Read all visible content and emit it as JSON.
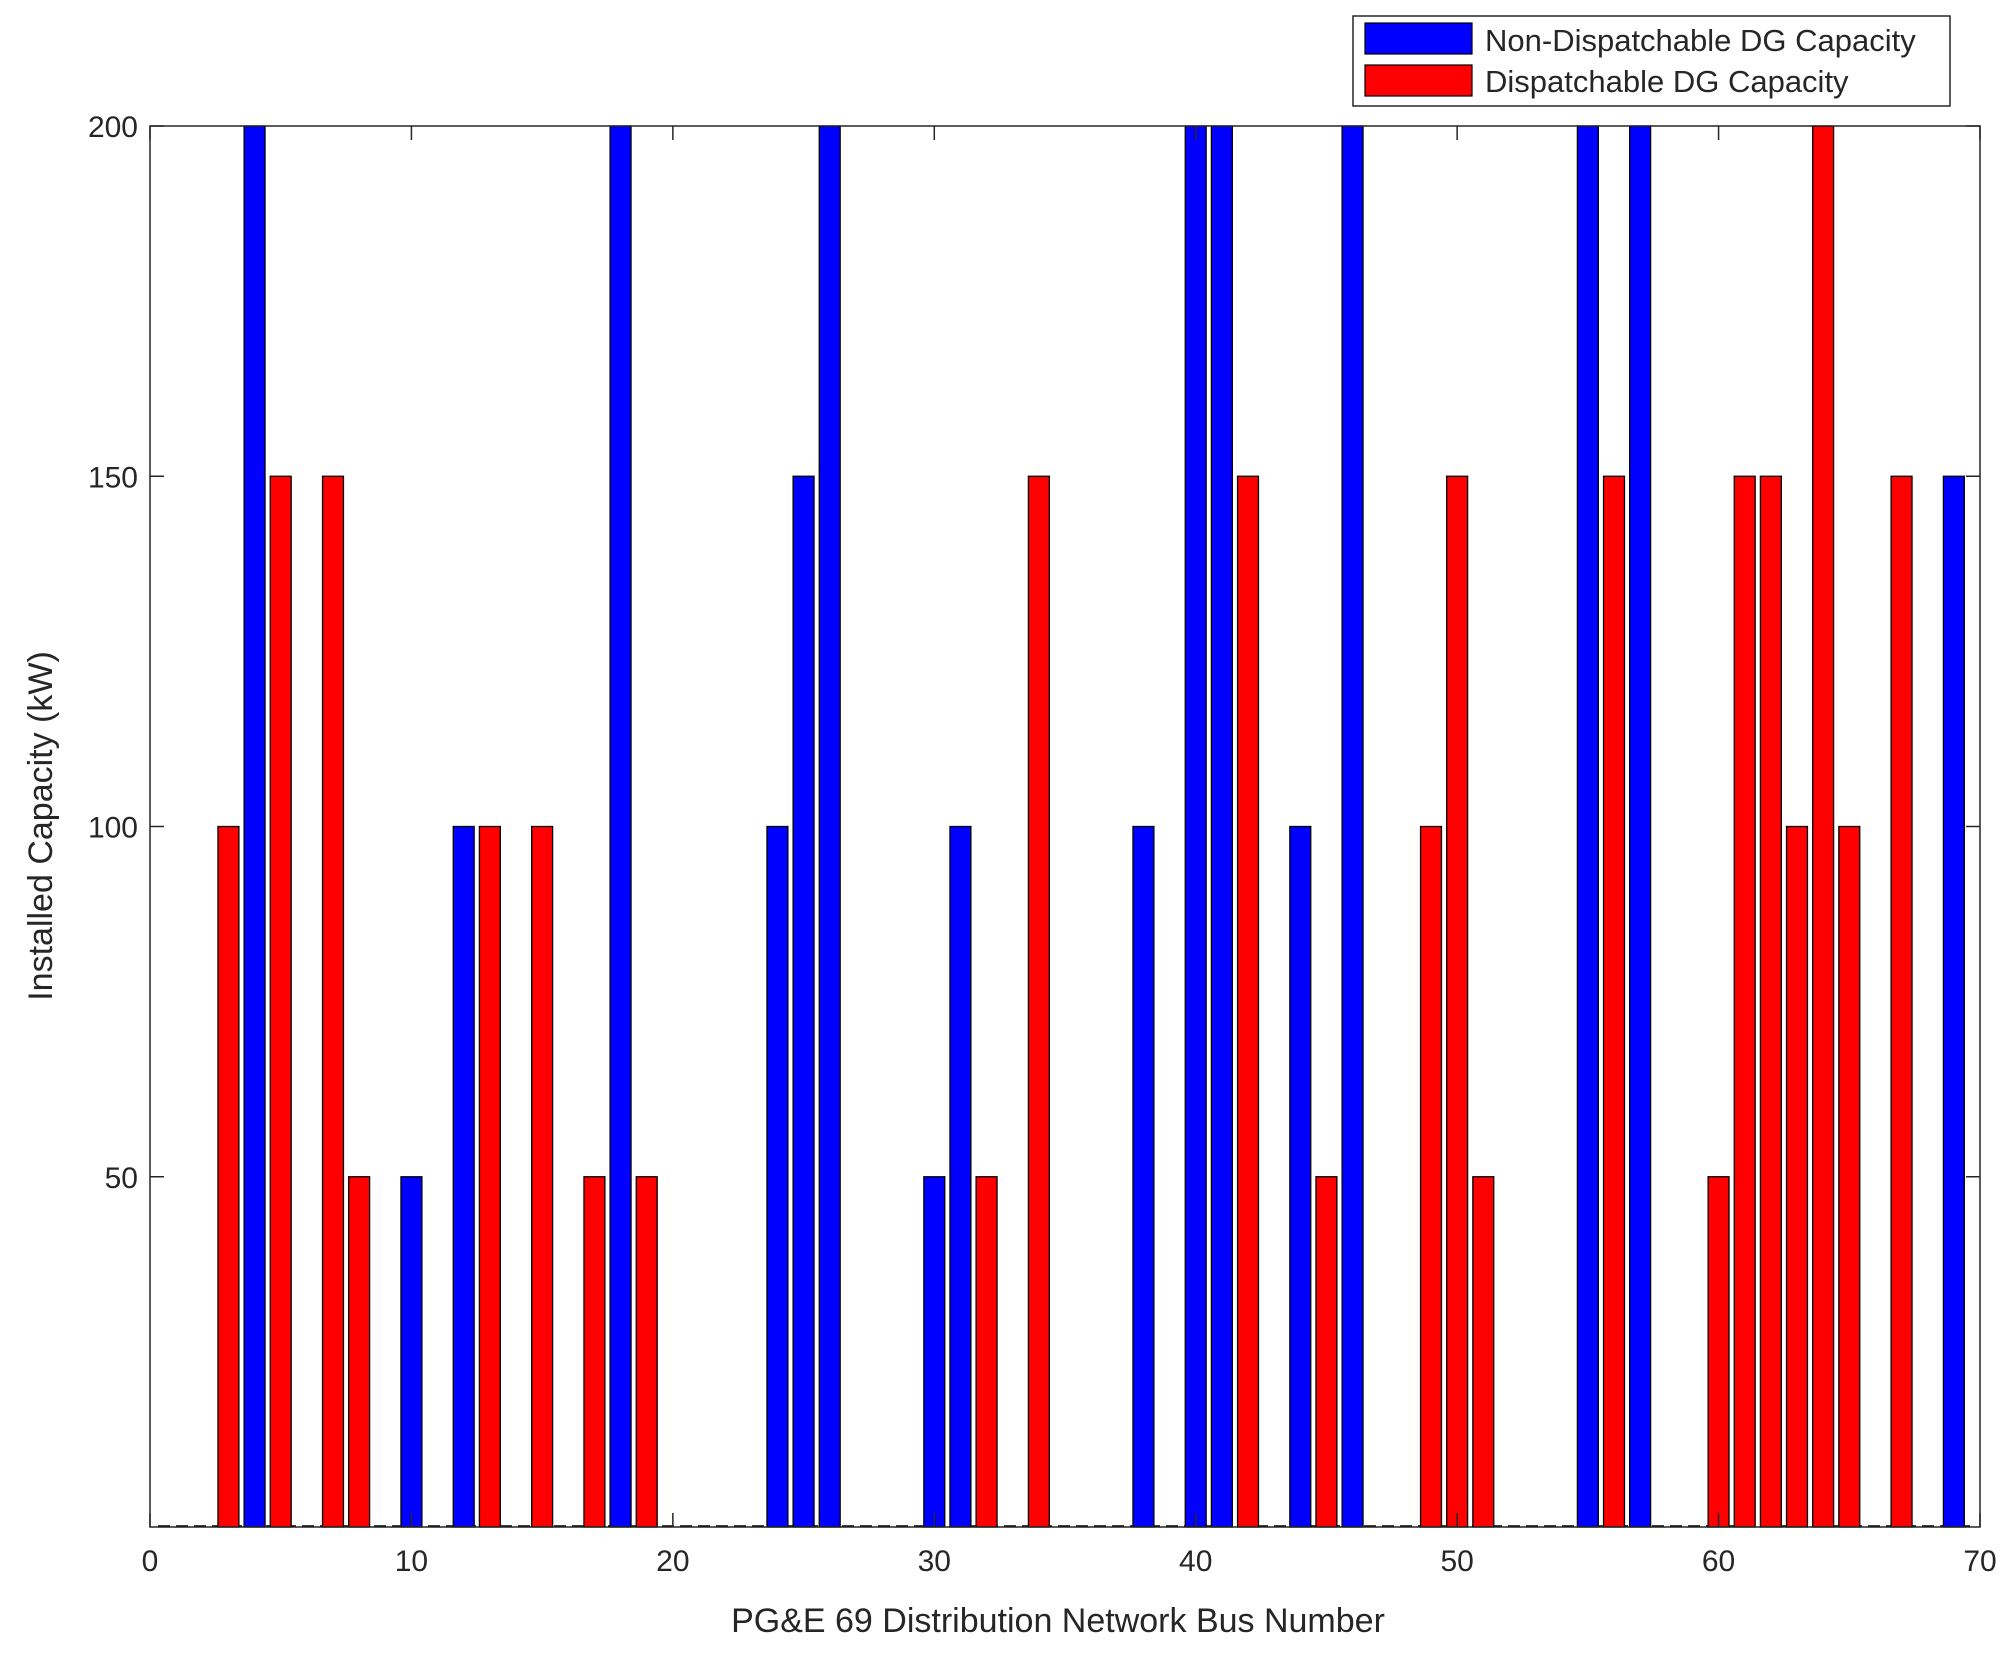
{
  "chart_data": {
    "type": "bar",
    "title": "",
    "xlabel": "PG&E 69 Distribution Network Bus Number",
    "ylabel": "Installed Capacity (kW)",
    "xlim": [
      0,
      70
    ],
    "ylim": [
      0,
      200
    ],
    "x_ticks": [
      "0",
      "10",
      "20",
      "30",
      "40",
      "50",
      "60",
      "70"
    ],
    "y_ticks": [
      "50",
      "100",
      "150",
      "200"
    ],
    "legend_position": "top-right, above plot",
    "series": [
      {
        "name": "Non-Dispatchable DG Capacity",
        "color": "#0000ff",
        "points": [
          {
            "x": 4,
            "y": 200
          },
          {
            "x": 10,
            "y": 50
          },
          {
            "x": 12,
            "y": 100
          },
          {
            "x": 18,
            "y": 200
          },
          {
            "x": 24,
            "y": 100
          },
          {
            "x": 25,
            "y": 150
          },
          {
            "x": 26,
            "y": 200
          },
          {
            "x": 30,
            "y": 50
          },
          {
            "x": 31,
            "y": 100
          },
          {
            "x": 38,
            "y": 100
          },
          {
            "x": 40,
            "y": 200
          },
          {
            "x": 41,
            "y": 200
          },
          {
            "x": 44,
            "y": 100
          },
          {
            "x": 46,
            "y": 200
          },
          {
            "x": 55,
            "y": 200
          },
          {
            "x": 57,
            "y": 200
          },
          {
            "x": 69,
            "y": 150
          }
        ]
      },
      {
        "name": "Dispatchable DG Capacity",
        "color": "#ff0000",
        "points": [
          {
            "x": 3,
            "y": 100
          },
          {
            "x": 5,
            "y": 150
          },
          {
            "x": 7,
            "y": 150
          },
          {
            "x": 8,
            "y": 50
          },
          {
            "x": 13,
            "y": 100
          },
          {
            "x": 15,
            "y": 100
          },
          {
            "x": 17,
            "y": 50
          },
          {
            "x": 19,
            "y": 50
          },
          {
            "x": 32,
            "y": 50
          },
          {
            "x": 34,
            "y": 150
          },
          {
            "x": 42,
            "y": 150
          },
          {
            "x": 45,
            "y": 50
          },
          {
            "x": 49,
            "y": 100
          },
          {
            "x": 50,
            "y": 150
          },
          {
            "x": 51,
            "y": 50
          },
          {
            "x": 56,
            "y": 150
          },
          {
            "x": 60,
            "y": 50
          },
          {
            "x": 61,
            "y": 150
          },
          {
            "x": 62,
            "y": 150
          },
          {
            "x": 63,
            "y": 100
          },
          {
            "x": 64,
            "y": 200
          },
          {
            "x": 65,
            "y": 100
          },
          {
            "x": 67,
            "y": 150
          }
        ]
      }
    ]
  }
}
